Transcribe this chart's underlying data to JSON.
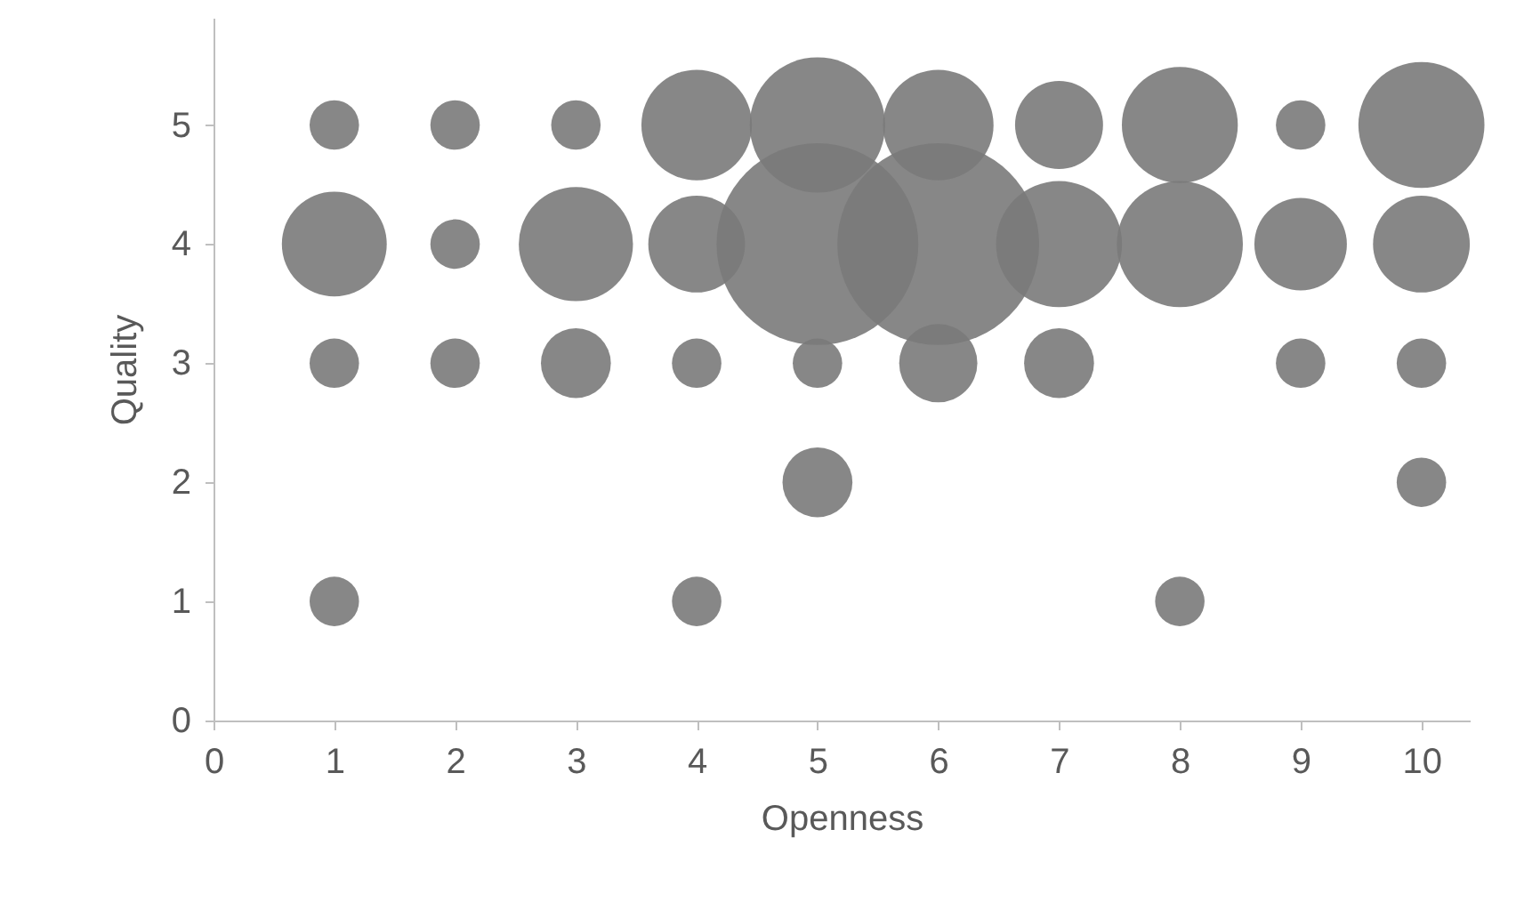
{
  "chart_data": {
    "type": "bubble",
    "xlabel": "Openness",
    "ylabel": "Quality",
    "xlim": [
      0,
      10.4
    ],
    "ylim": [
      0,
      5.9
    ],
    "xticks": [
      0,
      1,
      2,
      3,
      4,
      5,
      6,
      7,
      8,
      9,
      10
    ],
    "yticks": [
      0,
      1,
      2,
      3,
      4,
      5
    ],
    "grid": false,
    "series": [
      {
        "color": "#7a7a7a",
        "x": [
          1,
          2,
          3,
          4,
          5,
          6,
          7,
          8,
          9,
          10,
          1,
          2,
          3,
          4,
          5,
          6,
          7,
          8,
          9,
          10,
          1,
          2,
          3,
          4,
          5,
          6,
          7,
          9,
          10,
          5,
          10,
          1,
          4,
          8
        ],
        "values": [
          5,
          5,
          5,
          5,
          5,
          5,
          5,
          5,
          5,
          5,
          4,
          4,
          4,
          4,
          4,
          4,
          4,
          4,
          4,
          4,
          3,
          3,
          3,
          3,
          3,
          3,
          3,
          3,
          3,
          2,
          2,
          1,
          1,
          1
        ],
        "sizes": [
          0.06,
          0.06,
          0.06,
          0.3,
          0.45,
          0.3,
          0.19,
          0.33,
          0.06,
          0.39,
          0.27,
          0.06,
          0.32,
          0.23,
          1,
          1,
          0.39,
          0.39,
          0.21,
          0.23,
          0.06,
          0.06,
          0.12,
          0.06,
          0.06,
          0.15,
          0.12,
          0.06,
          0.06,
          0.12,
          0.06,
          0.06,
          0.06,
          0.06
        ]
      }
    ]
  }
}
